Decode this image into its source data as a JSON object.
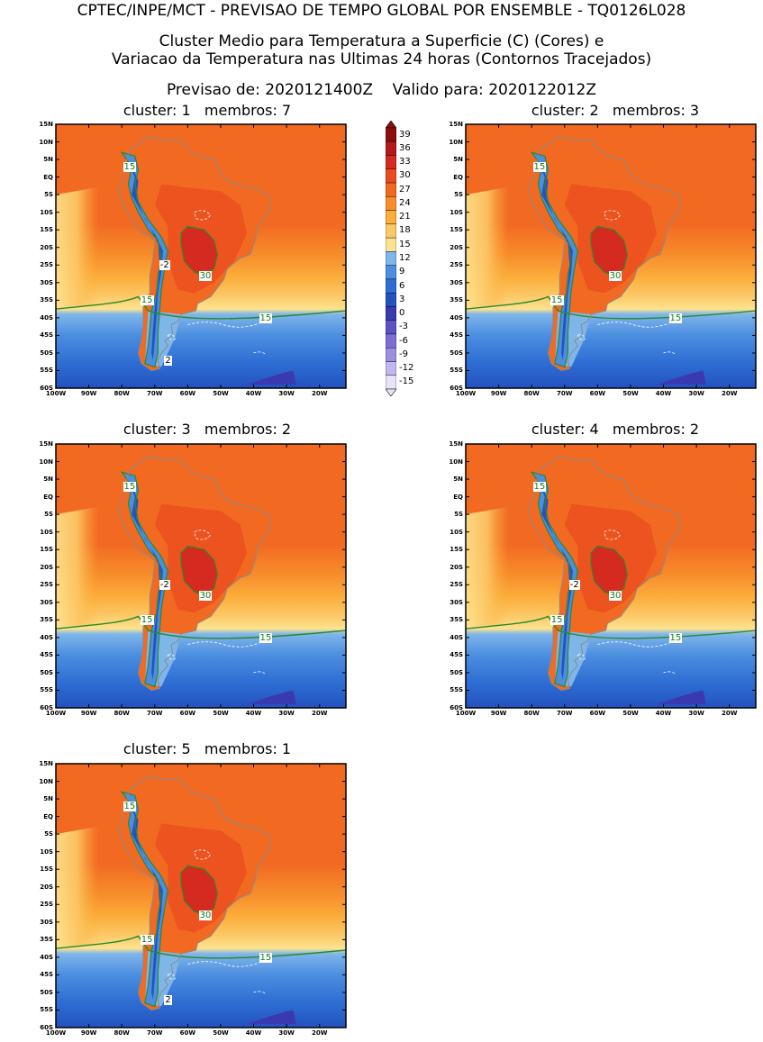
{
  "header": {
    "line1": "CPTEC/INPE/MCT - PREVISAO DE TEMPO GLOBAL POR ENSEMBLE - TQ0126L028",
    "line2": "Cluster Medio para Temperatura a Superficie (C) (Cores) e",
    "line3": "Variacao da Temperatura nas Ultimas 24 horas (Contornos Tracejados)",
    "line4": "Previsao de: 2020121400Z    Valido para: 2020122012Z"
  },
  "lat_labels": [
    "15N",
    "10N",
    "5N",
    "EQ",
    "5S",
    "10S",
    "15S",
    "20S",
    "25S",
    "30S",
    "35S",
    "40S",
    "45S",
    "50S",
    "55S",
    "60S"
  ],
  "lon_labels": [
    "100W",
    "90W",
    "80W",
    "70W",
    "60W",
    "50W",
    "40W",
    "30W",
    "20W"
  ],
  "colorbar": {
    "values": [
      "39",
      "36",
      "33",
      "30",
      "27",
      "24",
      "21",
      "18",
      "15",
      "12",
      "9",
      "6",
      "3",
      "0",
      "-3",
      "-6",
      "-9",
      "-12",
      "-15"
    ],
    "colors": [
      "#8b0f0f",
      "#b31a1a",
      "#d42a1f",
      "#ea4a1c",
      "#f26a22",
      "#f78e2c",
      "#fbae3a",
      "#fcc866",
      "#fde38f",
      "#7fb6ea",
      "#4c8ee0",
      "#2f6fd4",
      "#2352c0",
      "#3a3ab0",
      "#5c52c4",
      "#7d6ed2",
      "#9c8ee0",
      "#c2b6ee",
      "#e8e2f8"
    ]
  },
  "panels": [
    {
      "title": "cluster: 1   membros: 7",
      "l15a": "15",
      "l15b": "15",
      "l15c": "15",
      "lm2": "-2",
      "l30": "30",
      "l2": "2"
    },
    {
      "title": "cluster: 2   membros: 3",
      "l15a": "15",
      "l15b": "15",
      "l15c": "15",
      "l30": "30"
    },
    {
      "title": "cluster: 3   membros: 2",
      "l15a": "15",
      "l15b": "15",
      "l15c": "15",
      "lm2": "-2",
      "l30": "30"
    },
    {
      "title": "cluster: 4   membros: 2",
      "l15a": "15",
      "l15b": "15",
      "l15c": "15",
      "lm2": "-2",
      "l30": "30"
    },
    {
      "title": "cluster: 5   membros: 1",
      "l15a": "15",
      "l15b": "15",
      "l15c": "15",
      "l30": "30",
      "l2": "2"
    }
  ]
}
